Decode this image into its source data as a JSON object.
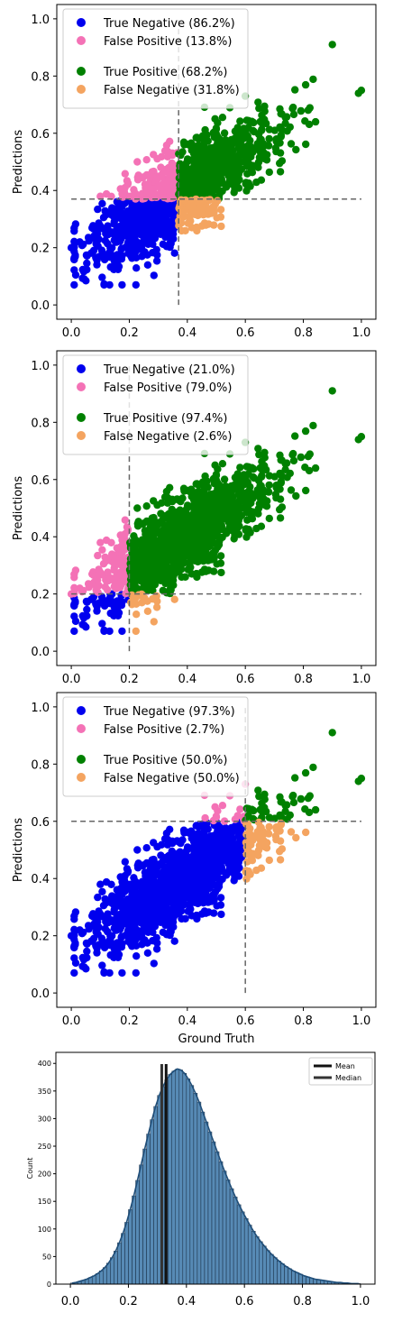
{
  "chart_data": [
    {
      "type": "scatter",
      "xlim": [
        -0.05,
        1.05
      ],
      "ylim": [
        -0.05,
        1.05
      ],
      "xticks": [
        "0.0",
        "0.2",
        "0.4",
        "0.6",
        "0.8",
        "1.0"
      ],
      "yticks": [
        "0.0",
        "0.2",
        "0.4",
        "0.6",
        "0.8",
        "1.0"
      ],
      "xlabel": "",
      "ylabel": "Predictions",
      "threshold_x": 0.37,
      "threshold_y": 0.37,
      "legend": [
        "True Negative (86.2%)",
        "False Positive (13.8%)",
        "True Positive (68.2%)",
        "False Negative (31.8%)"
      ],
      "legend_placement": "top-left",
      "colors": {
        "tn": "#0000ee",
        "fp": "#f472b6",
        "tp": "#008000",
        "fn": "#f4a460"
      }
    },
    {
      "type": "scatter",
      "xlim": [
        -0.05,
        1.05
      ],
      "ylim": [
        -0.05,
        1.05
      ],
      "xticks": [
        "0.0",
        "0.2",
        "0.4",
        "0.6",
        "0.8",
        "1.0"
      ],
      "yticks": [
        "0.0",
        "0.2",
        "0.4",
        "0.6",
        "0.8",
        "1.0"
      ],
      "xlabel": "",
      "ylabel": "Predictions",
      "threshold_x": 0.2,
      "threshold_y": 0.2,
      "legend": [
        "True Negative (21.0%)",
        "False Positive (79.0%)",
        "True Positive (97.4%)",
        "False Negative (2.6%)"
      ],
      "legend_placement": "top-left",
      "colors": {
        "tn": "#0000ee",
        "fp": "#f472b6",
        "tp": "#008000",
        "fn": "#f4a460"
      }
    },
    {
      "type": "scatter",
      "xlim": [
        -0.05,
        1.05
      ],
      "ylim": [
        -0.05,
        1.05
      ],
      "xticks": [
        "0.0",
        "0.2",
        "0.4",
        "0.6",
        "0.8",
        "1.0"
      ],
      "yticks": [
        "0.0",
        "0.2",
        "0.4",
        "0.6",
        "0.8",
        "1.0"
      ],
      "xlabel": "Ground Truth",
      "ylabel": "Predictions",
      "threshold_x": 0.6,
      "threshold_y": 0.6,
      "legend": [
        "True Negative (97.3%)",
        "False Positive (2.7%)",
        "True Positive (50.0%)",
        "False Negative (50.0%)"
      ],
      "legend_placement": "top-left",
      "colors": {
        "tn": "#0000ee",
        "fp": "#f472b6",
        "tp": "#008000",
        "fn": "#f4a460"
      }
    },
    {
      "type": "bar",
      "xlim": [
        -0.05,
        1.05
      ],
      "ylim": [
        0,
        420
      ],
      "xticks": [
        "0.0",
        "0.2",
        "0.4",
        "0.6",
        "0.8",
        "1.0"
      ],
      "yticks": [
        "0",
        "50",
        "100",
        "150",
        "200",
        "250",
        "300",
        "350",
        "400"
      ],
      "ylabel": "Count",
      "bin_width": 0.0125,
      "bin_start": 0.0,
      "values": [
        2,
        3,
        5,
        7,
        9,
        12,
        15,
        19,
        24,
        30,
        38,
        48,
        60,
        75,
        92,
        112,
        135,
        160,
        188,
        216,
        245,
        272,
        298,
        322,
        342,
        358,
        370,
        380,
        386,
        390,
        388,
        382,
        372,
        360,
        346,
        330,
        312,
        294,
        276,
        258,
        240,
        222,
        205,
        189,
        173,
        158,
        144,
        131,
        119,
        107,
        96,
        86,
        77,
        69,
        61,
        54,
        48,
        42,
        37,
        32,
        28,
        24,
        21,
        18,
        15,
        13,
        11,
        9,
        8,
        7,
        6,
        5,
        4,
        3,
        3,
        2,
        2,
        1,
        1,
        1
      ],
      "mean": 0.33,
      "median": 0.315,
      "legend": [
        "Mean",
        "Median"
      ],
      "legend_placement": "top-right",
      "bar_color": "#3a75a8",
      "kde_color": "#1f4e79"
    }
  ]
}
